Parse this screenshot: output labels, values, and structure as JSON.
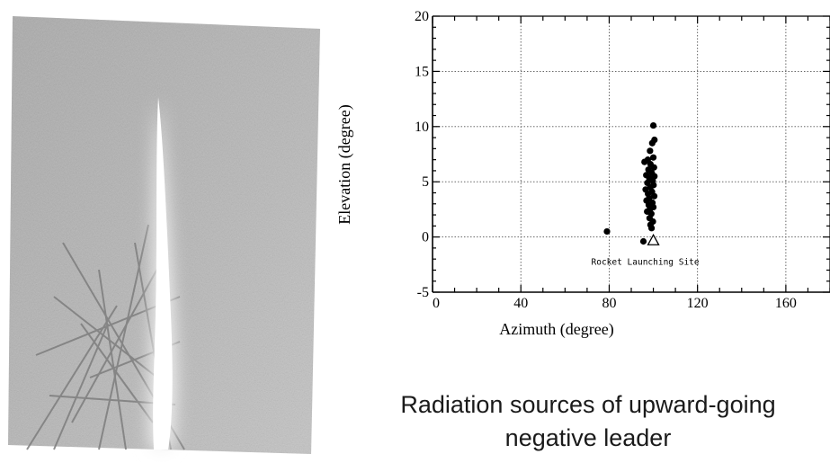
{
  "caption": {
    "line1": "Radiation sources of upward-going",
    "line2": "negative leader"
  },
  "chart_data": {
    "type": "scatter",
    "title": "",
    "xlabel": "Azimuth (degree)",
    "ylabel": "Elevation (degree)",
    "xlim": [
      0,
      180
    ],
    "ylim": [
      -5,
      20
    ],
    "x_ticks": [
      0,
      40,
      80,
      120,
      160
    ],
    "y_ticks": [
      -5,
      0,
      5,
      10,
      15,
      20
    ],
    "grid": true,
    "series": [
      {
        "marker": "filled-circle",
        "points": [
          [
            100,
            10.1
          ],
          [
            100.5,
            8.8
          ],
          [
            99.5,
            8.5
          ],
          [
            98.5,
            7.8
          ],
          [
            100,
            7.2
          ],
          [
            97.5,
            7.0
          ],
          [
            96,
            6.8
          ],
          [
            98.7,
            6.6
          ],
          [
            100.3,
            6.3
          ],
          [
            97.8,
            6.1
          ],
          [
            99.3,
            5.8
          ],
          [
            96.8,
            5.6
          ],
          [
            100.5,
            5.5
          ],
          [
            98.2,
            5.3
          ],
          [
            99.7,
            5.1
          ],
          [
            97.3,
            4.9
          ],
          [
            100.1,
            4.7
          ],
          [
            98.6,
            4.5
          ],
          [
            96.5,
            4.3
          ],
          [
            99.4,
            4.1
          ],
          [
            97.6,
            3.9
          ],
          [
            100.4,
            3.7
          ],
          [
            98.1,
            3.5
          ],
          [
            96.9,
            3.3
          ],
          [
            99.6,
            3.1
          ],
          [
            97.9,
            2.9
          ],
          [
            100,
            2.7
          ],
          [
            98.4,
            2.5
          ],
          [
            97.2,
            2.3
          ],
          [
            99.1,
            2.1
          ],
          [
            98.3,
            1.7
          ],
          [
            99.8,
            1.4
          ],
          [
            98.7,
            1.1
          ],
          [
            99.2,
            0.8
          ],
          [
            79,
            0.5
          ],
          [
            95.5,
            -0.4
          ]
        ]
      }
    ],
    "annotations": [
      {
        "text": "Rocket Launching Site",
        "marker": "open-triangle",
        "x": 100,
        "y": -0.3
      }
    ]
  }
}
